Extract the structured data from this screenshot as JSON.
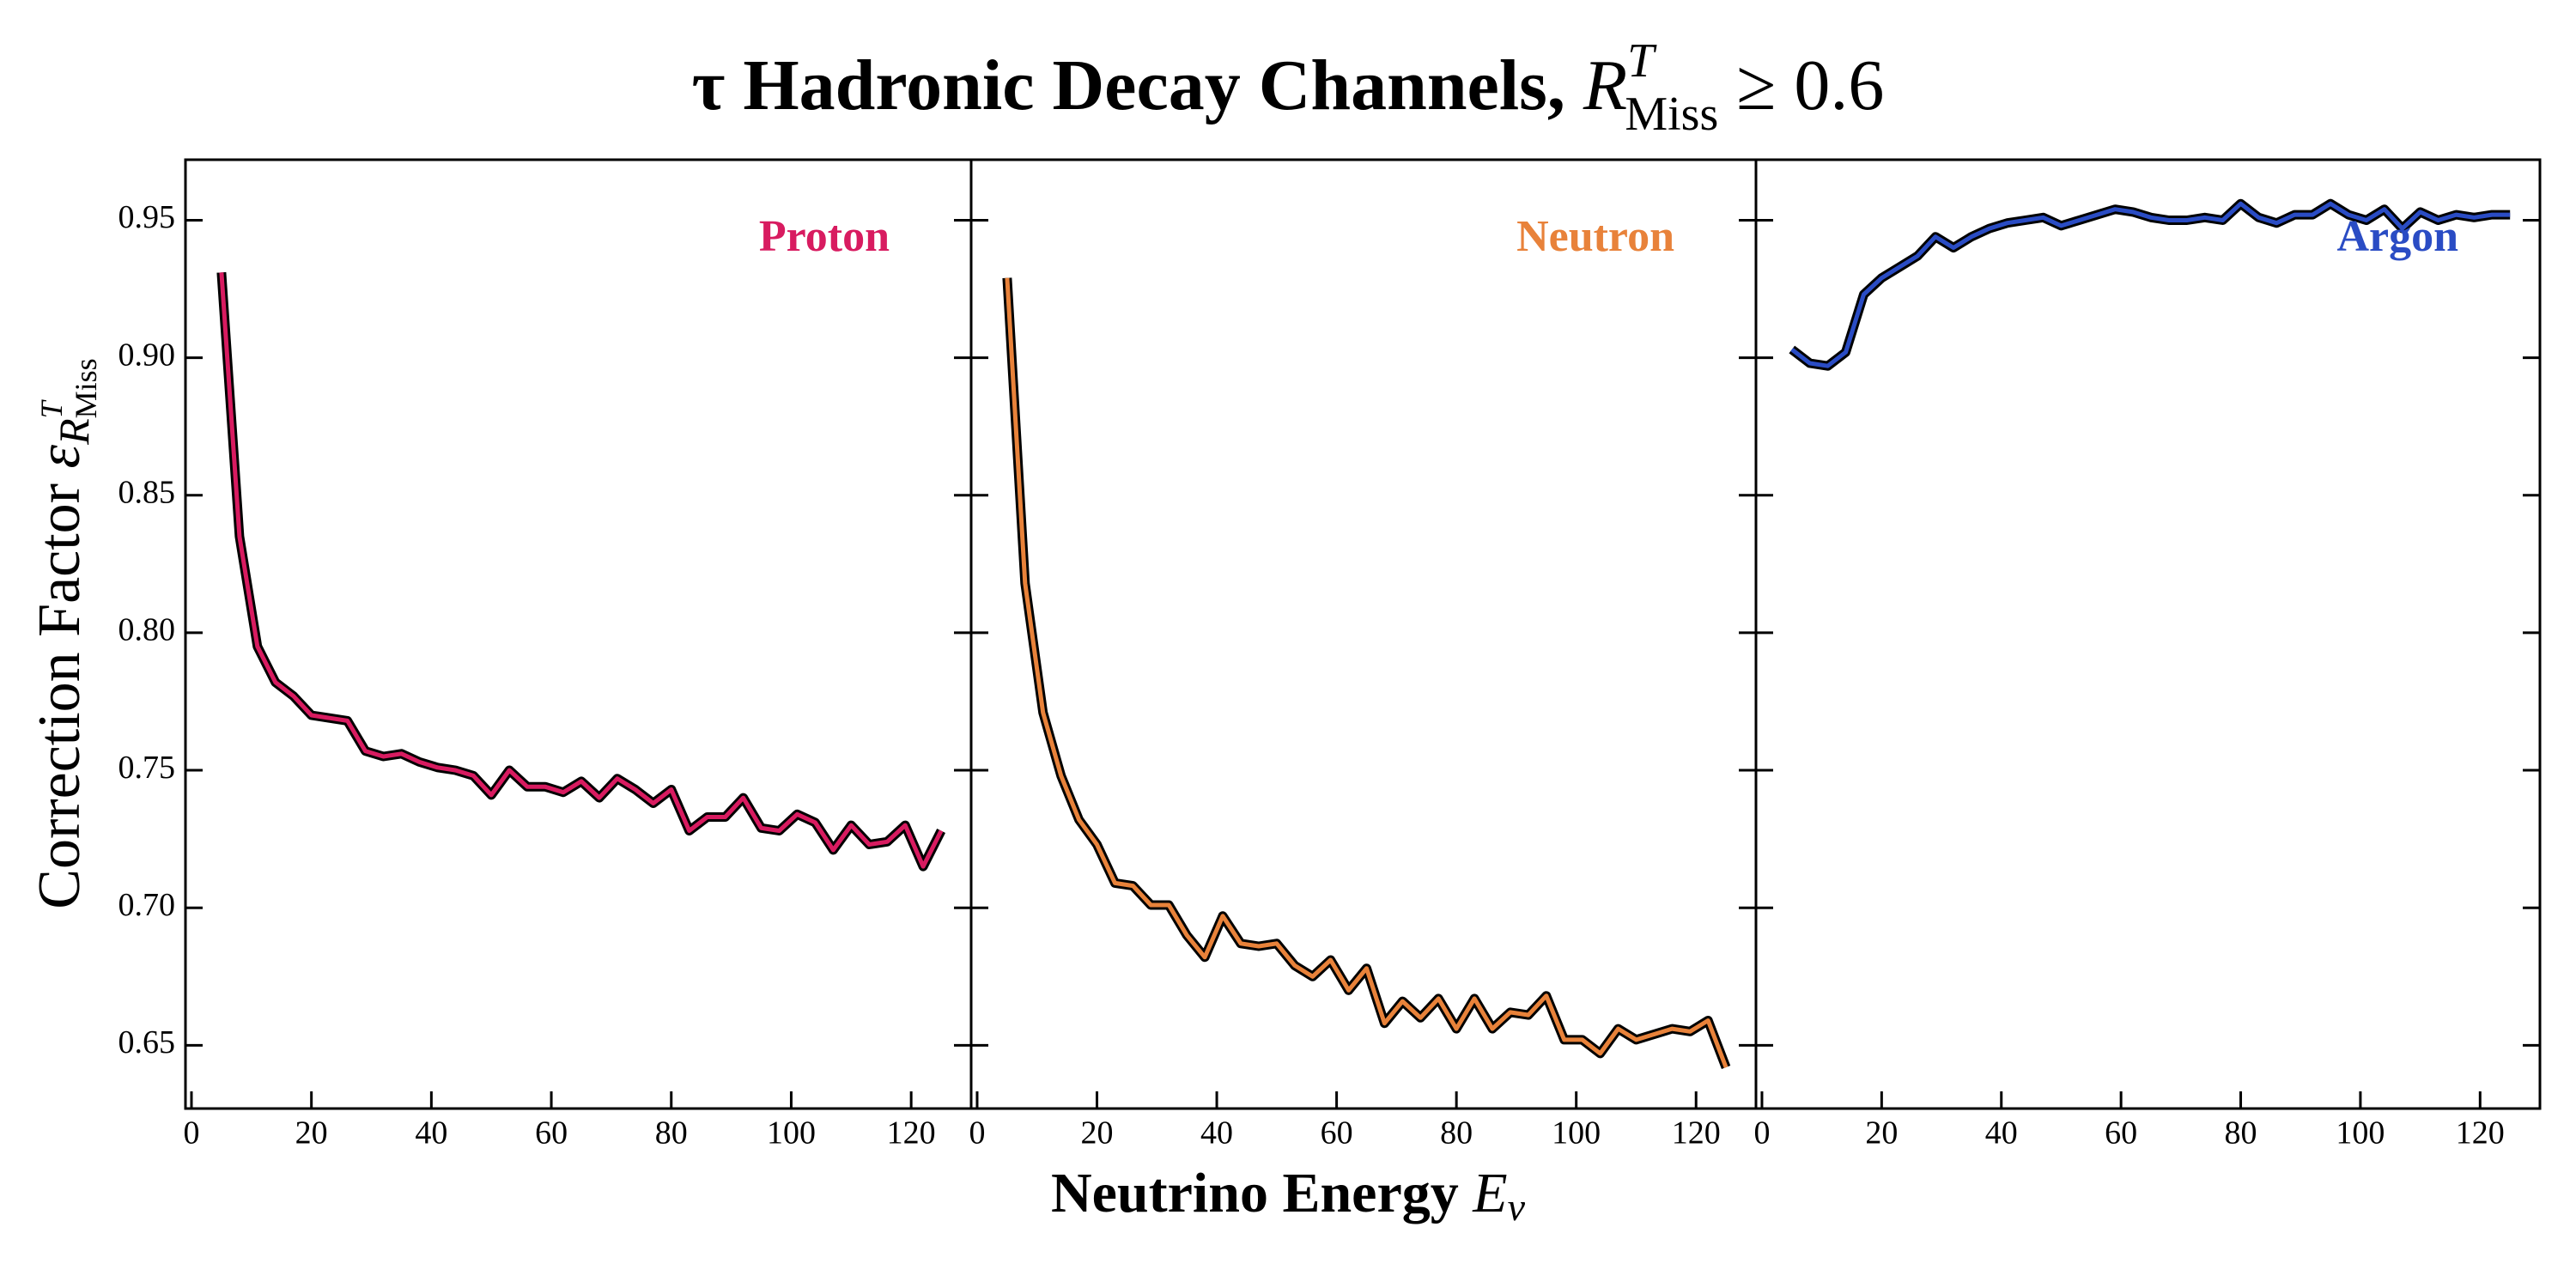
{
  "title": {
    "text": "τ Hadronic Decay Channels, ",
    "symbol": "R",
    "superscript": "T",
    "subscript": "Miss",
    "suffix": " ≥ 0.6"
  },
  "x_label": {
    "text": "Neutrino Energy ",
    "symbol": "E",
    "subscript": "ν"
  },
  "y_label": {
    "text": "Correction Factor ",
    "symbol": "ε",
    "subscript": "R",
    "sub_superscript": "T",
    "sub_subscript": "Miss"
  },
  "chart_data": [
    {
      "type": "line",
      "label": "Proton",
      "color": "#d81b60",
      "x": [
        5,
        8,
        11,
        14,
        17,
        20,
        23,
        26,
        29,
        32,
        35,
        38,
        41,
        44,
        47,
        50,
        53,
        56,
        59,
        62,
        65,
        68,
        71,
        74,
        77,
        80,
        83,
        86,
        89,
        92,
        95,
        98,
        101,
        104,
        107,
        110,
        113,
        116,
        119,
        122,
        125
      ],
      "values": [
        0.931,
        0.835,
        0.795,
        0.782,
        0.777,
        0.77,
        0.769,
        0.768,
        0.757,
        0.755,
        0.756,
        0.753,
        0.751,
        0.75,
        0.748,
        0.741,
        0.75,
        0.744,
        0.744,
        0.742,
        0.746,
        0.74,
        0.747,
        0.743,
        0.738,
        0.743,
        0.728,
        0.733,
        0.733,
        0.74,
        0.729,
        0.728,
        0.734,
        0.731,
        0.721,
        0.73,
        0.723,
        0.724,
        0.73,
        0.715,
        0.728
      ],
      "xlim": [
        -1,
        130
      ],
      "xticks": [
        0,
        20,
        40,
        60,
        80,
        100,
        120
      ],
      "ylim": [
        0.627,
        0.972
      ],
      "yticks": [
        0.65,
        {
          "value": 0.7,
          "label": "0.70"
        },
        0.75,
        {
          "value": 0.8,
          "label": "0.80"
        },
        0.85,
        {
          "value": 0.9,
          "label": "0.90"
        },
        0.95
      ]
    },
    {
      "type": "line",
      "label": "Neutron",
      "color": "#e8823a",
      "x": [
        5,
        8,
        11,
        14,
        17,
        20,
        23,
        26,
        29,
        32,
        35,
        38,
        41,
        44,
        47,
        50,
        53,
        56,
        59,
        62,
        65,
        68,
        71,
        74,
        77,
        80,
        83,
        86,
        89,
        92,
        95,
        98,
        101,
        104,
        107,
        110,
        113,
        116,
        119,
        122,
        125
      ],
      "values": [
        0.929,
        0.818,
        0.771,
        0.748,
        0.732,
        0.723,
        0.709,
        0.708,
        0.701,
        0.701,
        0.69,
        0.682,
        0.697,
        0.687,
        0.686,
        0.687,
        0.679,
        0.675,
        0.681,
        0.67,
        0.678,
        0.658,
        0.666,
        0.66,
        0.667,
        0.656,
        0.667,
        0.656,
        0.662,
        0.661,
        0.668,
        0.652,
        0.652,
        0.647,
        0.656,
        0.652,
        0.654,
        0.656,
        0.655,
        0.659,
        0.642
      ],
      "xlim": [
        -1,
        130
      ],
      "xticks": [
        0,
        20,
        40,
        60,
        80,
        100,
        120
      ]
    },
    {
      "type": "line",
      "label": "Argon",
      "color": "#2a4cc4",
      "x": [
        5,
        8,
        11,
        14,
        17,
        20,
        23,
        26,
        29,
        32,
        35,
        38,
        41,
        44,
        47,
        50,
        53,
        56,
        59,
        62,
        65,
        68,
        71,
        74,
        77,
        80,
        83,
        86,
        89,
        92,
        95,
        98,
        101,
        104,
        107,
        110,
        113,
        116,
        119,
        122,
        125
      ],
      "values": [
        0.903,
        0.898,
        0.897,
        0.902,
        0.923,
        0.929,
        0.933,
        0.937,
        0.944,
        0.94,
        0.944,
        0.947,
        0.949,
        0.95,
        0.951,
        0.948,
        0.95,
        0.952,
        0.954,
        0.953,
        0.951,
        0.95,
        0.95,
        0.951,
        0.95,
        0.956,
        0.951,
        0.949,
        0.952,
        0.952,
        0.956,
        0.952,
        0.95,
        0.954,
        0.947,
        0.953,
        0.95,
        0.952,
        0.951,
        0.952,
        0.952
      ],
      "xlim": [
        -1,
        130
      ],
      "xticks": [
        0,
        20,
        40,
        60,
        80,
        100,
        120
      ]
    }
  ]
}
